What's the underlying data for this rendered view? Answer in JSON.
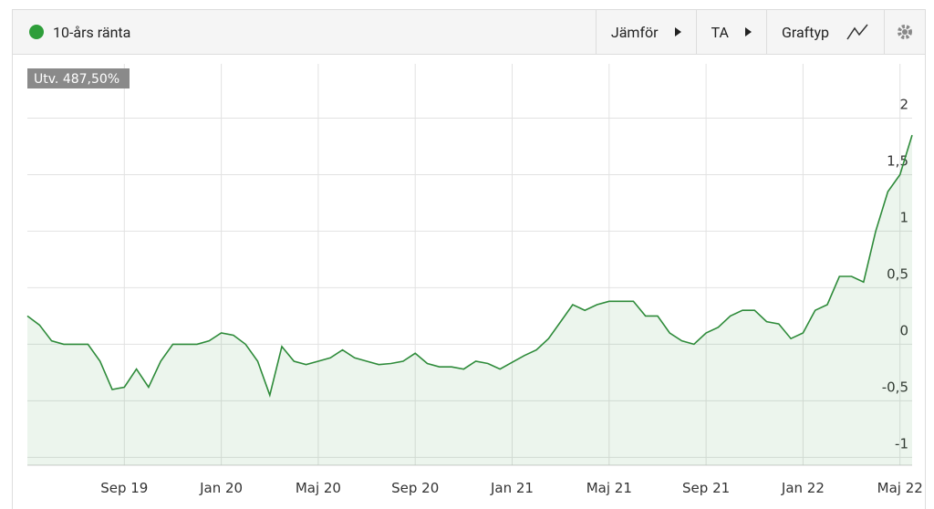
{
  "chart_data": {
    "type": "line",
    "title": "10-års ränta",
    "buttons": [
      "Jämför",
      "TA",
      "Graftyp"
    ],
    "badge": "Utv. 487,50%",
    "color": "#2e8b3a",
    "grid": true,
    "categories": [
      null,
      null,
      null,
      null,
      null,
      null,
      null,
      null,
      "Sep 19",
      null,
      null,
      null,
      null,
      null,
      null,
      null,
      "Jan 20",
      null,
      null,
      null,
      null,
      null,
      null,
      null,
      "Maj 20",
      null,
      null,
      null,
      null,
      null,
      null,
      null,
      "Sep 20",
      null,
      null,
      null,
      null,
      null,
      null,
      null,
      "Jan 21",
      null,
      null,
      null,
      null,
      null,
      null,
      null,
      "Maj 21",
      null,
      null,
      null,
      null,
      null,
      null,
      null,
      "Sep 21",
      null,
      null,
      null,
      null,
      null,
      null,
      null,
      "Jan 22",
      null,
      null,
      null,
      null,
      null,
      null,
      null,
      "Maj 22",
      null
    ],
    "values": [
      0.25,
      0.17,
      0.03,
      0.0,
      0.0,
      0.0,
      -0.15,
      -0.4,
      -0.38,
      -0.22,
      -0.38,
      -0.15,
      0.0,
      0.0,
      0.0,
      0.03,
      0.1,
      0.08,
      0.0,
      -0.15,
      -0.45,
      -0.02,
      -0.15,
      -0.18,
      -0.15,
      -0.12,
      -0.05,
      -0.12,
      -0.15,
      -0.18,
      -0.17,
      -0.15,
      -0.08,
      -0.17,
      -0.2,
      -0.2,
      -0.22,
      -0.15,
      -0.17,
      -0.22,
      -0.16,
      -0.1,
      -0.05,
      0.05,
      0.2,
      0.35,
      0.3,
      0.35,
      0.38,
      0.38,
      0.38,
      0.25,
      0.25,
      0.1,
      0.03,
      0.0,
      0.1,
      0.15,
      0.25,
      0.3,
      0.3,
      0.2,
      0.18,
      0.05,
      0.1,
      0.3,
      0.35,
      0.6,
      0.6,
      0.55,
      1.0,
      1.35,
      1.5,
      1.85
    ],
    "ylim": [
      -1.07,
      2.48
    ],
    "yticks": [
      2,
      {
        "value": 1.5,
        "label": "1,5"
      },
      1,
      {
        "value": 0.5,
        "label": "0,5"
      },
      0,
      {
        "value": -0.5,
        "label": "-0,5"
      },
      -1
    ]
  }
}
